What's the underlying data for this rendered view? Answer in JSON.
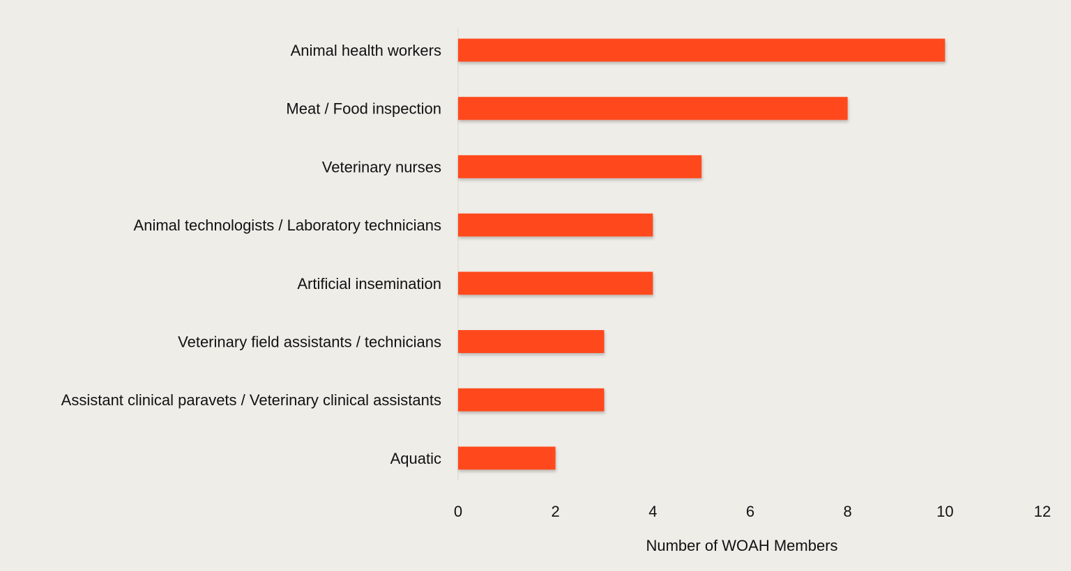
{
  "chart_data": {
    "type": "bar",
    "orientation": "horizontal",
    "categories": [
      "Animal health workers",
      "Meat / Food inspection",
      "Veterinary nurses",
      "Animal technologists / Laboratory technicians",
      "Artificial insemination",
      "Veterinary field assistants / technicians",
      "Assistant clinical paravets / Veterinary clinical assistants",
      "Aquatic"
    ],
    "values": [
      10,
      8,
      5,
      4,
      4,
      3,
      3,
      2
    ],
    "xlabel": "Number of WOAH Members",
    "ylabel": "",
    "xlim": [
      0,
      12
    ],
    "xticks": [
      "0",
      "2",
      "4",
      "6",
      "8",
      "10",
      "12"
    ],
    "grid": false,
    "legend": "none",
    "bar_color": "#ff4a1c",
    "background": "#efede8"
  }
}
